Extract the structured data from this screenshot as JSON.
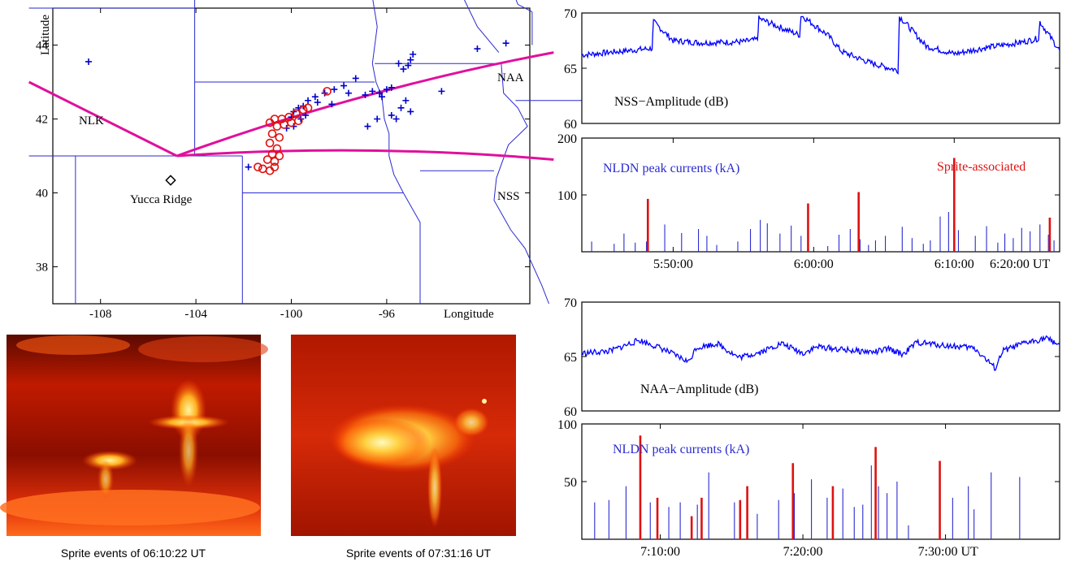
{
  "map": {
    "ylabel": "Latitude",
    "xlabel": "Longitude",
    "x_ticks": [
      "-108",
      "-104",
      "-100",
      "-96"
    ],
    "y_ticks": [
      "44",
      "42",
      "40",
      "38"
    ],
    "x_range": [
      -110,
      -90
    ],
    "y_range": [
      37,
      45
    ],
    "stations": [
      {
        "name": "NLK",
        "lon": -111.0,
        "lat": 43.0
      },
      {
        "name": "NAA",
        "lon": -89.0,
        "lat": 43.8
      },
      {
        "name": "NSS",
        "lon": -89.0,
        "lat": 40.9
      }
    ],
    "site": {
      "name": "Yucca Ridge",
      "lon": -104.8,
      "lat": 41.0
    },
    "path_color": "#e0109c",
    "border_color": "#2a2ad0",
    "lightning_color": "#0000cc",
    "sprite_color": "#e01010"
  },
  "images": [
    {
      "caption": "Sprite events of 06:10:22 UT"
    },
    {
      "caption": "Sprite events of 07:31:16 UT"
    }
  ],
  "chart_data": [
    {
      "type": "line",
      "ylabel": "NSS−Amplitude (dB)",
      "ylim": [
        60,
        70
      ],
      "y_ticks": [
        "70",
        "65",
        "60"
      ],
      "x_range_min": [
        43.5,
        77.5
      ],
      "series_color": "#0000ff",
      "x": [
        43.5,
        48.5,
        48.6,
        50,
        52,
        55,
        56,
        56.1,
        58,
        59,
        59.1,
        61,
        62,
        64,
        66,
        66.1,
        68,
        70,
        72,
        75,
        76,
        76.1,
        77.5
      ],
      "y": [
        66.2,
        66.8,
        69.2,
        67.5,
        67.3,
        67.4,
        67.6,
        69.5,
        68.5,
        68,
        69.8,
        68,
        66.5,
        65.5,
        64.8,
        69.7,
        67,
        66.3,
        66.8,
        67.4,
        67.7,
        69.2,
        66.6
      ]
    },
    {
      "type": "bar",
      "legend": [
        "NLDN peak currents (kA)",
        "Sprite-associated"
      ],
      "legend_colors": [
        "#2a2ad0",
        "#e01010"
      ],
      "ylim": [
        0,
        200
      ],
      "y_ticks": [
        "200",
        "100"
      ],
      "xlim_min": [
        43.5,
        77.5
      ],
      "x_ticks": [
        {
          "label": "5:50:00",
          "value": 50
        },
        {
          "label": "6:00:00",
          "value": 60
        },
        {
          "label": "6:10:00",
          "value": 70
        },
        {
          "label": "6:20:00 UT",
          "value": 80
        }
      ],
      "lightning": [
        [
          44.2,
          18
        ],
        [
          45.8,
          14
        ],
        [
          46.5,
          32
        ],
        [
          47.3,
          16
        ],
        [
          48.1,
          18
        ],
        [
          49.4,
          48
        ],
        [
          50.6,
          33
        ],
        [
          51.8,
          40
        ],
        [
          52.4,
          28
        ],
        [
          53.1,
          12
        ],
        [
          54.6,
          18
        ],
        [
          55.5,
          40
        ],
        [
          56.2,
          56
        ],
        [
          56.7,
          50
        ],
        [
          57.6,
          32
        ],
        [
          58.4,
          46
        ],
        [
          59.1,
          28
        ],
        [
          61.0,
          10
        ],
        [
          61.8,
          30
        ],
        [
          62.6,
          40
        ],
        [
          63.3,
          22
        ],
        [
          63.9,
          12
        ],
        [
          64.4,
          20
        ],
        [
          65.1,
          28
        ],
        [
          66.3,
          44
        ],
        [
          67.0,
          24
        ],
        [
          67.8,
          14
        ],
        [
          68.3,
          20
        ],
        [
          69.0,
          62
        ],
        [
          69.6,
          70
        ],
        [
          70.3,
          38
        ],
        [
          71.5,
          28
        ],
        [
          72.3,
          45
        ],
        [
          73.1,
          16
        ],
        [
          73.6,
          32
        ],
        [
          74.2,
          24
        ],
        [
          74.8,
          42
        ],
        [
          75.4,
          36
        ],
        [
          76.1,
          48
        ],
        [
          76.7,
          30
        ],
        [
          77.1,
          20
        ]
      ],
      "sprites": [
        [
          48.2,
          93
        ],
        [
          59.6,
          85
        ],
        [
          63.2,
          105
        ],
        [
          70.0,
          165
        ],
        [
          76.8,
          60
        ]
      ]
    },
    {
      "type": "line",
      "ylabel": "NAA−Amplitude (dB)",
      "ylim": [
        60,
        70
      ],
      "y_ticks": [
        "70",
        "65",
        "60"
      ],
      "x_range_min": [
        64.5,
        98
      ],
      "series_color": "#0000ff",
      "x": [
        64.5,
        66.5,
        68.5,
        70,
        72,
        72.5,
        74,
        75.5,
        77,
        78.5,
        80,
        81,
        83,
        85,
        86,
        87,
        88,
        90,
        92,
        93.5,
        94,
        95.5,
        97,
        98
      ],
      "y": [
        65.3,
        65.5,
        66.5,
        65.8,
        64.5,
        65.8,
        66.2,
        64.9,
        65.4,
        66.2,
        65.3,
        65.9,
        65.6,
        65.4,
        65.7,
        65.2,
        66.3,
        66.0,
        65.8,
        63.9,
        65.5,
        66.2,
        66.7,
        66.1
      ]
    },
    {
      "type": "bar",
      "legend": [
        "NLDN peak currents (kA)"
      ],
      "legend_colors": [
        "#2a2ad0"
      ],
      "ylim": [
        0,
        100
      ],
      "y_ticks": [
        "100",
        "50"
      ],
      "xlim_min": [
        64.5,
        98
      ],
      "x_ticks": [
        {
          "label": "7:10:00",
          "value": 70
        },
        {
          "label": "7:20:00",
          "value": 80
        },
        {
          "label": "7:30:00 UT",
          "value": 90
        }
      ],
      "lightning": [
        [
          65.4,
          32
        ],
        [
          66.4,
          34
        ],
        [
          67.6,
          46
        ],
        [
          69.3,
          32
        ],
        [
          70.6,
          28
        ],
        [
          71.4,
          32
        ],
        [
          72.6,
          30
        ],
        [
          73.4,
          58
        ],
        [
          75.2,
          32
        ],
        [
          76.8,
          22
        ],
        [
          78.3,
          34
        ],
        [
          79.4,
          40
        ],
        [
          80.6,
          52
        ],
        [
          81.7,
          36
        ],
        [
          82.8,
          44
        ],
        [
          83.6,
          28
        ],
        [
          84.2,
          30
        ],
        [
          84.8,
          64
        ],
        [
          85.3,
          46
        ],
        [
          85.9,
          40
        ],
        [
          86.6,
          50
        ],
        [
          87.4,
          12
        ],
        [
          90.5,
          36
        ],
        [
          91.6,
          46
        ],
        [
          92.0,
          26
        ],
        [
          93.2,
          58
        ],
        [
          95.2,
          54
        ]
      ],
      "sprites": [
        [
          68.6,
          90
        ],
        [
          69.8,
          36
        ],
        [
          72.2,
          20
        ],
        [
          72.9,
          36
        ],
        [
          75.6,
          34
        ],
        [
          76.1,
          46
        ],
        [
          79.3,
          66
        ],
        [
          82.1,
          46
        ],
        [
          85.1,
          80
        ],
        [
          89.6,
          68
        ]
      ]
    }
  ]
}
